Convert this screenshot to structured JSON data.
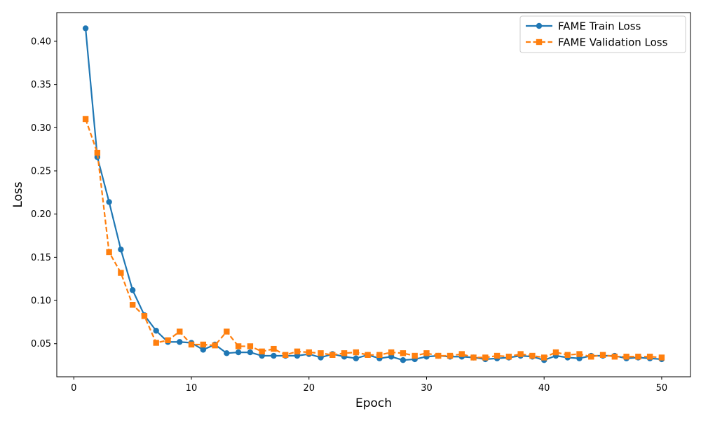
{
  "chart_data": {
    "type": "line",
    "xlabel": "Epoch",
    "ylabel": "Loss",
    "xlim": [
      -1.45,
      52.45
    ],
    "ylim": [
      0.0117,
      0.4332
    ],
    "xticks": [
      0,
      10,
      20,
      30,
      40,
      50
    ],
    "yticks": [
      0.05,
      0.1,
      0.15,
      0.2,
      0.25,
      0.3,
      0.35,
      0.4
    ],
    "ytick_labels": [
      "0.05",
      "0.10",
      "0.15",
      "0.20",
      "0.25",
      "0.30",
      "0.35",
      "0.40"
    ],
    "grid": false,
    "legend_position": "top-right",
    "x": [
      1,
      2,
      3,
      4,
      5,
      6,
      7,
      8,
      9,
      10,
      11,
      12,
      13,
      14,
      15,
      16,
      17,
      18,
      19,
      20,
      21,
      22,
      23,
      24,
      25,
      26,
      27,
      28,
      29,
      30,
      31,
      32,
      33,
      34,
      35,
      36,
      37,
      38,
      39,
      40,
      41,
      42,
      43,
      44,
      45,
      46,
      47,
      48,
      49,
      50
    ],
    "series": [
      {
        "name": "FAME Train Loss",
        "color": "#1f77b4",
        "line_style": "solid",
        "marker": "circle",
        "values": [
          0.415,
          0.266,
          0.214,
          0.159,
          0.112,
          0.083,
          0.065,
          0.052,
          0.052,
          0.051,
          0.043,
          0.049,
          0.039,
          0.04,
          0.04,
          0.036,
          0.036,
          0.036,
          0.036,
          0.038,
          0.034,
          0.038,
          0.035,
          0.033,
          0.037,
          0.033,
          0.035,
          0.031,
          0.032,
          0.035,
          0.036,
          0.035,
          0.035,
          0.034,
          0.032,
          0.033,
          0.034,
          0.036,
          0.035,
          0.031,
          0.036,
          0.034,
          0.033,
          0.036,
          0.036,
          0.036,
          0.033,
          0.034,
          0.033,
          0.032
        ]
      },
      {
        "name": "FAME Validation Loss",
        "color": "#ff7f0e",
        "line_style": "dashed",
        "marker": "square",
        "values": [
          0.31,
          0.271,
          0.156,
          0.132,
          0.095,
          0.082,
          0.051,
          0.054,
          0.064,
          0.049,
          0.049,
          0.048,
          0.064,
          0.047,
          0.047,
          0.041,
          0.044,
          0.037,
          0.041,
          0.04,
          0.039,
          0.037,
          0.039,
          0.04,
          0.037,
          0.037,
          0.04,
          0.039,
          0.036,
          0.039,
          0.036,
          0.036,
          0.038,
          0.034,
          0.034,
          0.036,
          0.035,
          0.038,
          0.036,
          0.034,
          0.04,
          0.037,
          0.038,
          0.035,
          0.037,
          0.035,
          0.035,
          0.035,
          0.035,
          0.034
        ]
      }
    ]
  }
}
